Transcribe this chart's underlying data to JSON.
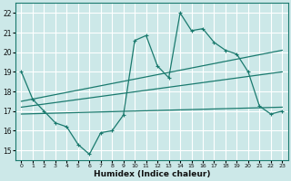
{
  "xlabel": "Humidex (Indice chaleur)",
  "xlim": [
    -0.5,
    23.5
  ],
  "ylim": [
    14.5,
    22.5
  ],
  "yticks": [
    15,
    16,
    17,
    18,
    19,
    20,
    21,
    22
  ],
  "xticks": [
    0,
    1,
    2,
    3,
    4,
    5,
    6,
    7,
    8,
    9,
    10,
    11,
    12,
    13,
    14,
    15,
    16,
    17,
    18,
    19,
    20,
    21,
    22,
    23
  ],
  "bg_color": "#cce8e8",
  "grid_color": "#ffffff",
  "line_color": "#1a7a6e",
  "main_x": [
    0,
    1,
    2,
    3,
    4,
    5,
    6,
    7,
    8,
    9,
    10,
    11,
    12,
    13,
    14,
    15,
    16,
    17,
    18,
    19,
    20,
    21,
    22,
    23
  ],
  "main_y": [
    19.0,
    17.6,
    17.0,
    16.4,
    16.2,
    15.3,
    14.8,
    15.9,
    16.0,
    16.8,
    20.6,
    20.85,
    19.3,
    18.7,
    22.0,
    21.1,
    21.2,
    20.5,
    20.1,
    19.9,
    19.0,
    17.25,
    16.85,
    17.0
  ],
  "upper_line_x": [
    0,
    23
  ],
  "upper_line_y": [
    17.5,
    20.1
  ],
  "mid_line_x": [
    0,
    23
  ],
  "mid_line_y": [
    17.2,
    19.0
  ],
  "lower_line_x": [
    0,
    23
  ],
  "lower_line_y": [
    16.85,
    17.2
  ]
}
